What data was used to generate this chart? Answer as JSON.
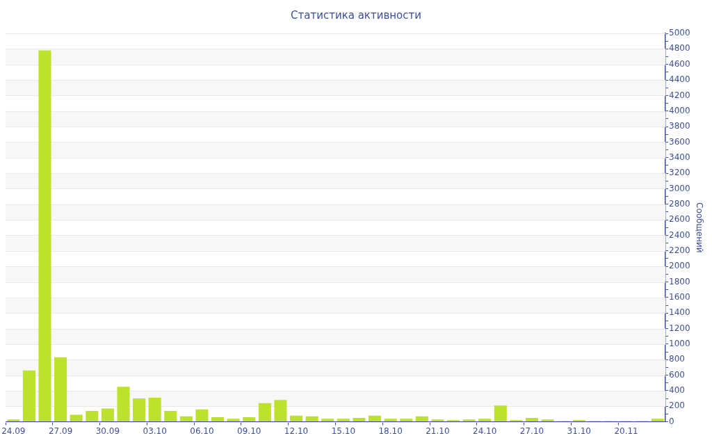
{
  "chart_data": {
    "type": "bar",
    "title": "Статистика активности",
    "ylabel": "Сообщений",
    "categories": [
      "24.09",
      null,
      null,
      "27.09",
      null,
      null,
      "30.09",
      null,
      null,
      "03.10",
      null,
      null,
      "06.10",
      null,
      null,
      "09.10",
      null,
      null,
      "12.10",
      null,
      null,
      "15.10",
      null,
      null,
      "18.10",
      null,
      null,
      "21.10",
      null,
      null,
      "24.10",
      null,
      null,
      "27.10",
      null,
      null,
      "31.10",
      null,
      null,
      "20.11",
      null,
      null
    ],
    "values": [
      30,
      660,
      4780,
      830,
      90,
      140,
      170,
      450,
      300,
      310,
      140,
      70,
      160,
      60,
      40,
      60,
      240,
      280,
      80,
      70,
      40,
      40,
      50,
      80,
      40,
      40,
      70,
      30,
      20,
      30,
      40,
      210,
      20,
      50,
      30,
      10,
      20,
      10,
      10,
      10,
      10,
      40
    ],
    "color": "#bce22e",
    "ylim": [
      0,
      5000
    ],
    "yticks": [
      0,
      {
        "value": 100,
        "label": null
      },
      200,
      {
        "value": 300,
        "label": null
      },
      400,
      {
        "value": 500,
        "label": null
      },
      600,
      {
        "value": 700,
        "label": null
      },
      800,
      {
        "value": 900,
        "label": null
      },
      1000,
      {
        "value": 1100,
        "label": null
      },
      1200,
      {
        "value": 1300,
        "label": null
      },
      1400,
      {
        "value": 1500,
        "label": null
      },
      1600,
      {
        "value": 1700,
        "label": null
      },
      1800,
      {
        "value": 1900,
        "label": null
      },
      2000,
      {
        "value": 2100,
        "label": null
      },
      2200,
      {
        "value": 2300,
        "label": null
      },
      2400,
      {
        "value": 2500,
        "label": null
      },
      2600,
      {
        "value": 2700,
        "label": null
      },
      2800,
      {
        "value": 2900,
        "label": null
      },
      3000,
      {
        "value": 3100,
        "label": null
      },
      3200,
      {
        "value": 3300,
        "label": null
      },
      3400,
      {
        "value": 3500,
        "label": null
      },
      3600,
      {
        "value": 3700,
        "label": null
      },
      3800,
      {
        "value": 3900,
        "label": null
      },
      4000,
      {
        "value": 4100,
        "label": null
      },
      4200,
      {
        "value": 4300,
        "label": null
      },
      4400,
      {
        "value": 4500,
        "label": null
      },
      4600,
      {
        "value": 4700,
        "label": null
      },
      4800,
      {
        "value": 4900,
        "label": null
      },
      5000
    ],
    "grid": "y",
    "legend": false
  }
}
